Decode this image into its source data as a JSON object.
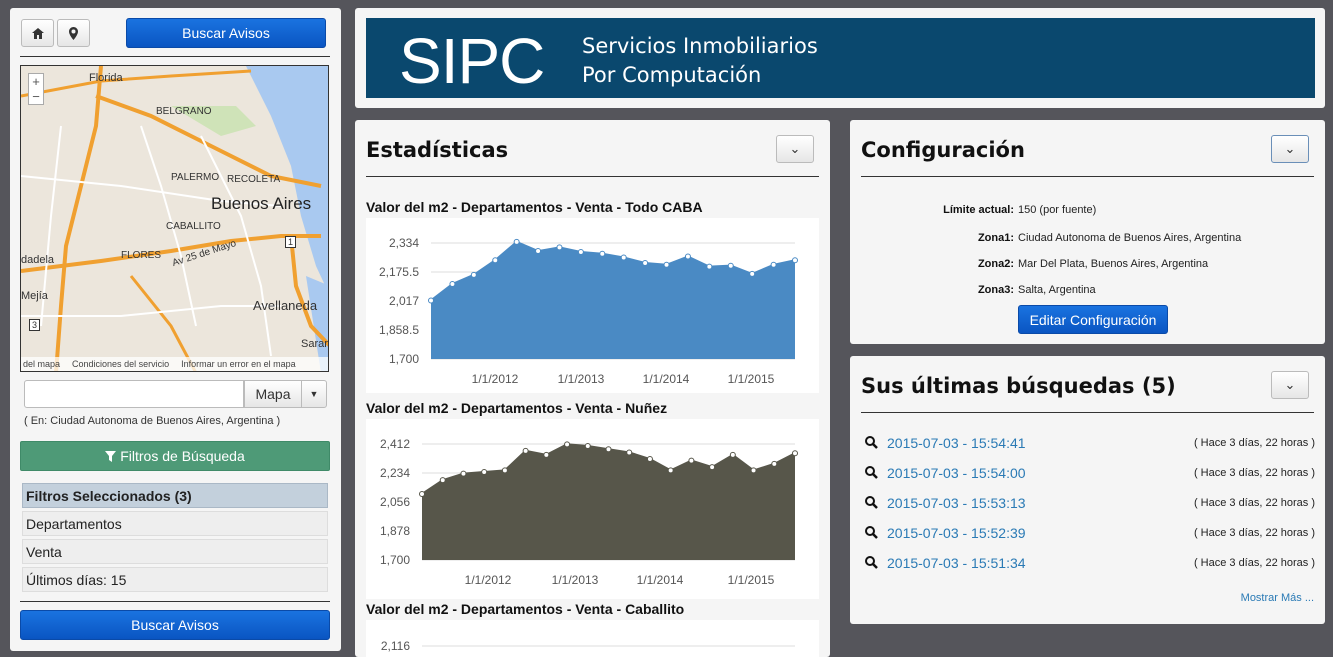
{
  "left": {
    "home_icon": "home-icon",
    "pin_icon": "map-pin-icon",
    "search_button": "Buscar Avisos",
    "map": {
      "labels": [
        "Florida",
        "BELGRANO",
        "PALERMO",
        "RECOLETA",
        "Buenos Aires",
        "CABALLITO",
        "Av 25 de Mayo",
        "FLORES",
        "dadela",
        "Mejía",
        "Avellaneda",
        "Sarar",
        "1",
        "3"
      ],
      "footer": [
        "del mapa",
        "Condiciones del servicio",
        "Informar un error en el mapa"
      ],
      "zoom_in": "+",
      "zoom_out": "−"
    },
    "search_input": {
      "value": "",
      "placeholder": ""
    },
    "map_button": "Mapa",
    "location_text": "( En: Ciudad Autonoma de Buenos Aires, Argentina )",
    "filters_button": "Filtros de Búsqueda",
    "selected_header": "Filtros Seleccionados (3)",
    "selected_items": [
      "Departamentos",
      "Venta",
      "Últimos días: 15"
    ],
    "bottom_button": "Buscar Avisos"
  },
  "header": {
    "logo": "SIPC",
    "tagline_1": "Servicios Inmobiliarios",
    "tagline_2": "Por Computación"
  },
  "stats": {
    "title": "Estadísticas",
    "charts": [
      {
        "title": "Valor del m2 - Departamentos - Venta - Todo CABA"
      },
      {
        "title": "Valor del m2 - Departamentos - Venta - Nuñez"
      },
      {
        "title": "Valor del m2 - Departamentos - Venta - Caballito"
      }
    ]
  },
  "chart_data": [
    {
      "type": "area",
      "title": "Valor del m2 - Departamentos - Venta - Todo CABA",
      "color": "#4a8ac4",
      "ylim": [
        1700,
        2334
      ],
      "yticks": [
        "2,334",
        "2,175.5",
        "2,017",
        "1,858.5",
        "1,700"
      ],
      "xticks": [
        "1/1/2012",
        "1/1/2013",
        "1/1/2014",
        "1/1/2015"
      ],
      "values": [
        2020,
        2110,
        2160,
        2240,
        2340,
        2290,
        2310,
        2285,
        2275,
        2255,
        2225,
        2215,
        2260,
        2205,
        2210,
        2165,
        2215,
        2240
      ]
    },
    {
      "type": "area",
      "title": "Valor del m2 - Departamentos - Venta - Nuñez",
      "color": "#57564a",
      "ylim": [
        1700,
        2412
      ],
      "yticks": [
        "2,412",
        "2,234",
        "2,056",
        "1,878",
        "1,700"
      ],
      "xticks": [
        "1/1/2012",
        "1/1/2013",
        "1/1/2014",
        "1/1/2015"
      ],
      "values": [
        2105,
        2190,
        2230,
        2240,
        2250,
        2370,
        2345,
        2410,
        2400,
        2380,
        2360,
        2320,
        2250,
        2310,
        2270,
        2345,
        2250,
        2290,
        2355
      ]
    },
    {
      "type": "area",
      "title": "Valor del m2 - Departamentos - Venta - Caballito",
      "color": "#4a8ac4",
      "ylim": [
        1700,
        2116
      ],
      "yticks": [
        "2,116"
      ],
      "xticks": [],
      "values": []
    }
  ],
  "config": {
    "title": "Configuración",
    "rows": [
      {
        "key": "Límite actual:",
        "value": "150 (por fuente)"
      },
      {
        "key": "Zona1:",
        "value": "Ciudad Autonoma de Buenos Aires, Argentina"
      },
      {
        "key": "Zona2:",
        "value": "Mar Del Plata, Buenos Aires, Argentina"
      },
      {
        "key": "Zona3:",
        "value": "Salta, Argentina"
      }
    ],
    "edit_button": "Editar Configuración"
  },
  "searches": {
    "title": "Sus últimas búsquedas (5)",
    "items": [
      {
        "date": "2015-07-03 - 15:54:41",
        "ago": "( Hace 3 días, 22 horas )"
      },
      {
        "date": "2015-07-03 - 15:54:00",
        "ago": "( Hace 3 días, 22 horas )"
      },
      {
        "date": "2015-07-03 - 15:53:13",
        "ago": "( Hace 3 días, 22 horas )"
      },
      {
        "date": "2015-07-03 - 15:52:39",
        "ago": "( Hace 3 días, 22 horas )"
      },
      {
        "date": "2015-07-03 - 15:51:34",
        "ago": "( Hace 3 días, 22 horas )"
      }
    ],
    "more": "Mostrar Más ..."
  }
}
